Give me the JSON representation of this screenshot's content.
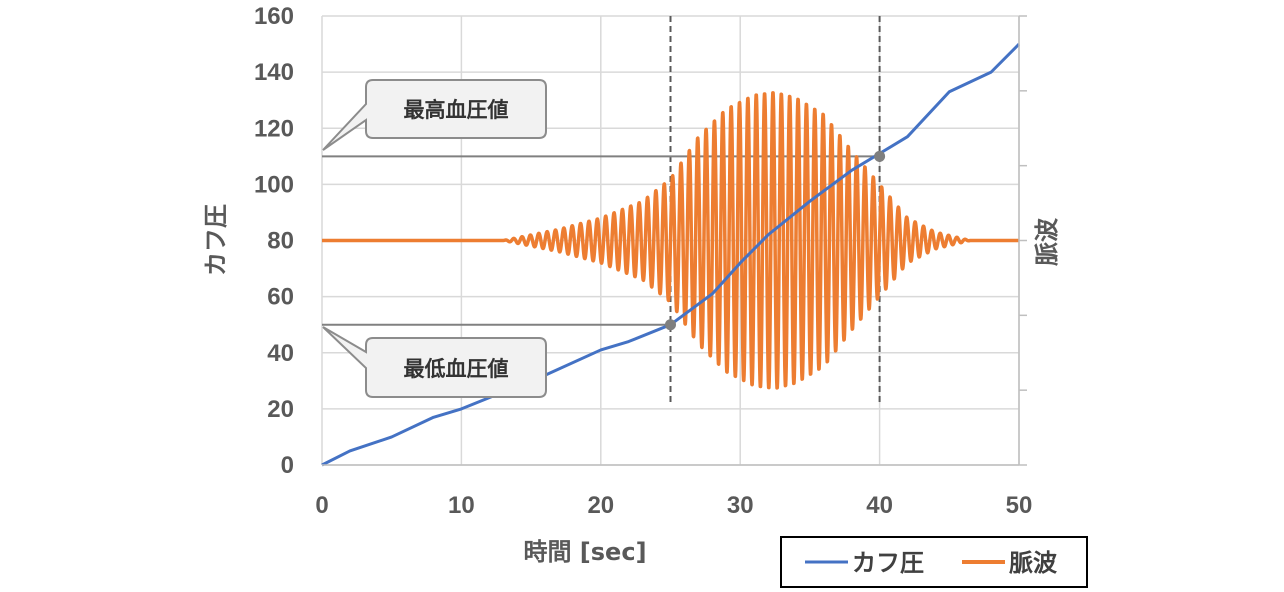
{
  "chart_data": {
    "type": "line",
    "x_label": "時間 [sec]",
    "y_label": "カフ圧",
    "y2_label": "脈波",
    "xlim": [
      0,
      50
    ],
    "ylim": [
      0,
      160
    ],
    "x_ticks": [
      "0",
      "10",
      "20",
      "30",
      "40",
      "50"
    ],
    "y_ticks": [
      "0",
      "20",
      "40",
      "60",
      "80",
      "100",
      "120",
      "140",
      "160"
    ],
    "grid": true,
    "legend_position": "bottom-right",
    "series": [
      {
        "name": "カフ圧",
        "color": "#4472C4",
        "x": [
          0,
          2,
          5,
          8,
          10,
          13,
          16,
          20,
          22,
          25,
          28,
          30,
          32,
          35,
          38,
          40,
          42,
          45,
          48,
          50
        ],
        "y": [
          0,
          5,
          10,
          17,
          20,
          26,
          32,
          41,
          44,
          50,
          61,
          72,
          82,
          94,
          105,
          111,
          117,
          133,
          140,
          150
        ]
      },
      {
        "name": "脈波",
        "color": "#ED7D31",
        "baseline": 80,
        "onset_x": 13,
        "end_x": 46.5,
        "peak_x": 32.5,
        "peak_amplitude": 53,
        "period": 0.6,
        "envelope": [
          [
            13,
            0
          ],
          [
            17,
            4
          ],
          [
            20,
            8
          ],
          [
            23,
            14
          ],
          [
            25,
            22
          ],
          [
            27,
            37
          ],
          [
            29,
            47
          ],
          [
            31,
            52
          ],
          [
            32.5,
            53
          ],
          [
            34,
            51
          ],
          [
            36,
            45
          ],
          [
            38,
            32
          ],
          [
            40,
            20
          ],
          [
            42,
            8
          ],
          [
            44,
            3
          ],
          [
            46.5,
            0
          ]
        ]
      }
    ],
    "reference_lines": [
      {
        "type": "vertical",
        "x": 25
      },
      {
        "type": "vertical",
        "x": 40
      },
      {
        "type": "horizontal",
        "y": 110,
        "x_end": 40
      },
      {
        "type": "horizontal",
        "y": 50,
        "x_end": 25
      }
    ],
    "markers": [
      {
        "x": 40,
        "y": 110
      },
      {
        "x": 25,
        "y": 50
      }
    ],
    "annotations": [
      {
        "text": "最高血圧値",
        "x": 0,
        "y": 110
      },
      {
        "text": "最低血圧値",
        "x": 0,
        "y": 50
      }
    ]
  }
}
